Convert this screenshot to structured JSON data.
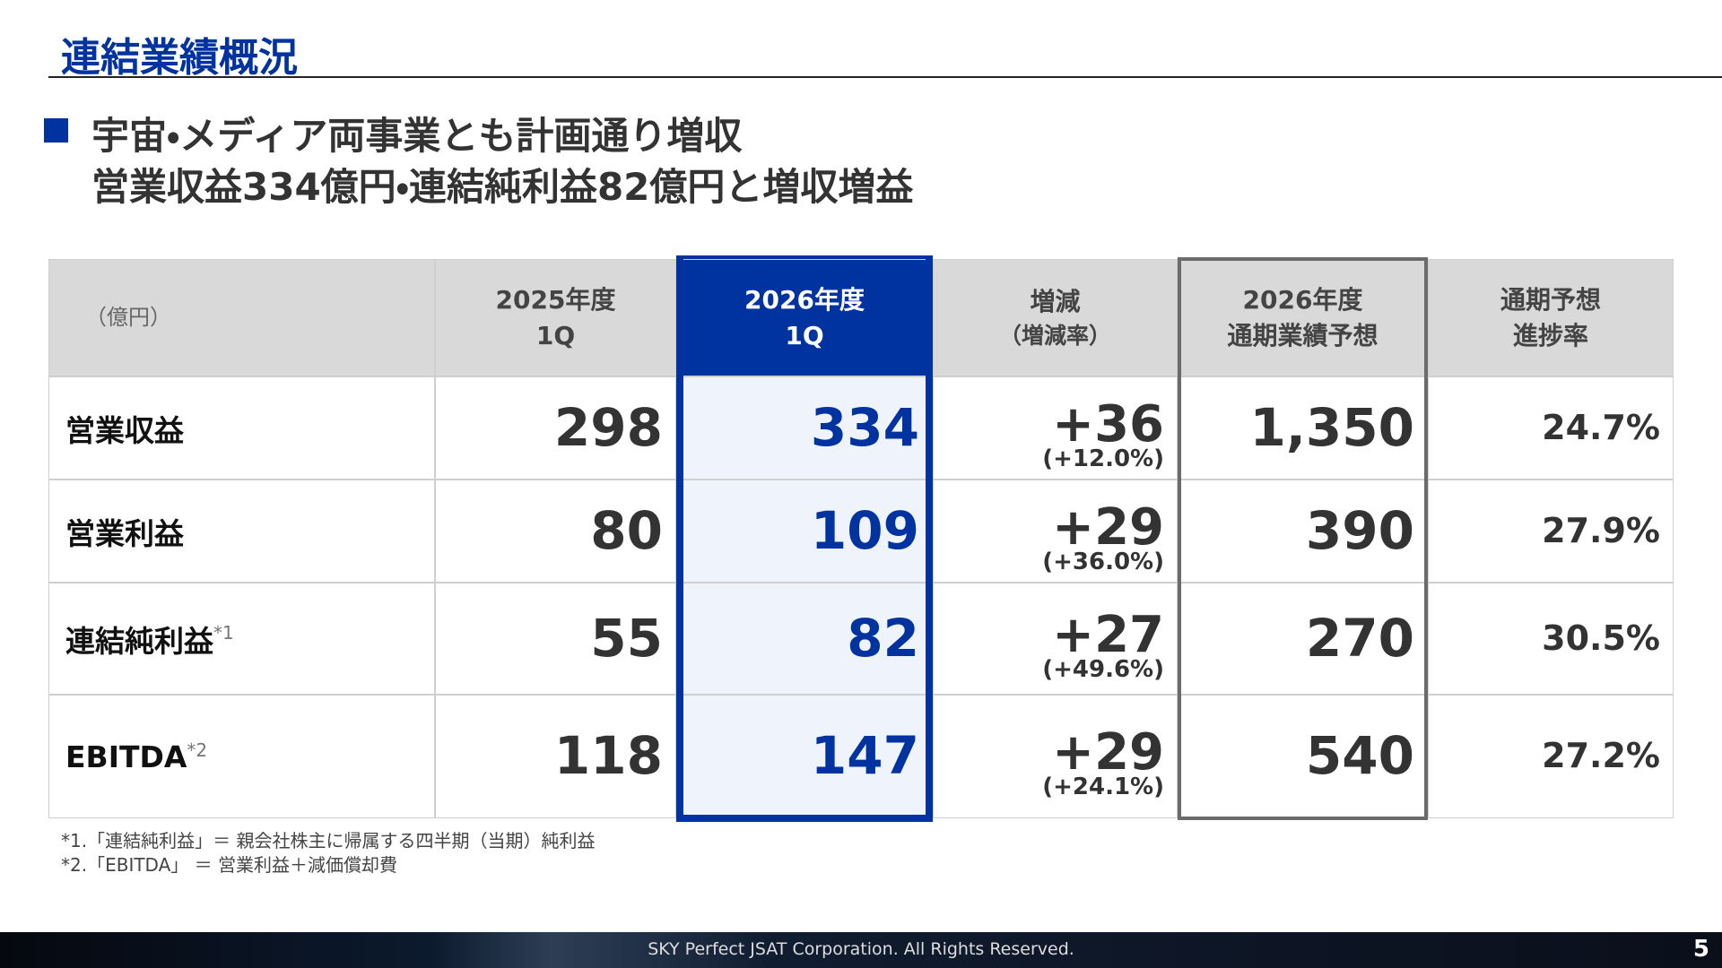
{
  "header": {
    "title": "連結業績概況"
  },
  "headline": {
    "lines": [
      "宇宙・メディア両事業とも計画通り増収",
      "営業収益334億円・連結純利益82億円と増収増益"
    ]
  },
  "table": {
    "unit": "（億円）",
    "columns": [
      [
        "2025年度",
        "1Q"
      ],
      [
        "2026年度",
        "1Q"
      ],
      [
        "増減",
        "（増減率）"
      ],
      [
        "2026年度",
        "通期業績予想"
      ],
      [
        "通期予想",
        "進捗率"
      ]
    ],
    "rows": [
      {
        "label": "営業収益",
        "values": [
          "298",
          "334",
          "+36",
          "1,350",
          "24.7%"
        ],
        "change_rate": "(+12.0%)"
      },
      {
        "label": "営業利益",
        "values": [
          "80",
          "109",
          "+29",
          "390",
          "27.9%"
        ],
        "change_rate": "(+36.0%)"
      },
      {
        "label": "連結純利益",
        "note": "*1",
        "values": [
          "55",
          "82",
          "+27",
          "270",
          "30.5%"
        ],
        "change_rate": "(+49.6%)"
      },
      {
        "label": "EBITDA",
        "note": "*2",
        "values": [
          "118",
          "147",
          "+29",
          "540",
          "27.2%"
        ],
        "change_rate": "(+24.1%)"
      }
    ]
  },
  "footnotes": [
    "*1.「連結純利益」＝ 親会社株主に帰属する四半期（当期）純利益",
    "*2.「EBITDA」 ＝ 営業利益＋減価償却費"
  ],
  "footer": {
    "copyright": "SKY Perfect JSAT Corporation. All Rights Reserved.",
    "page": "5"
  }
}
